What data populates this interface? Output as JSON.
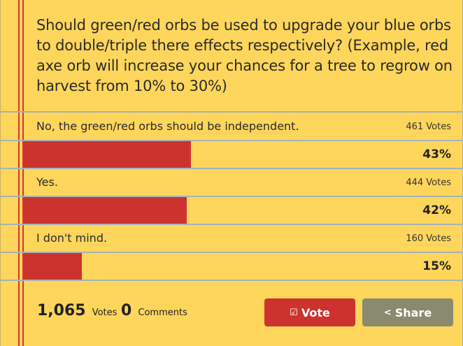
{
  "poll": {
    "question": "Should green/red orbs be used to upgrade your blue orbs to double/triple there effects respectively? (Example, red axe orb will increase your chances for a tree to regrow on harvest from 10% to 30%)",
    "options": [
      {
        "label": "No, the green/red orbs should be independent.",
        "votes": "461 Votes",
        "percent": "43%",
        "fraction": 0.43
      },
      {
        "label": "Yes.",
        "votes": "444 Votes",
        "percent": "42%",
        "fraction": 0.42
      },
      {
        "label": "I don't mind.",
        "votes": "160 Votes",
        "percent": "15%",
        "fraction": 0.15
      }
    ]
  },
  "footer": {
    "total_votes": "1,065",
    "votes_label": "Votes",
    "comments_count": "0",
    "comments_label": "Comments",
    "vote_button": "Vote",
    "share_button": "Share"
  },
  "colors": {
    "background": "#ffd65c",
    "accent_red": "#cc332e",
    "share_gray": "#8a8a6e",
    "rule_gray": "#a6b2b6"
  },
  "icons": {
    "vote": "checkmark-icon",
    "share": "share-icon"
  }
}
